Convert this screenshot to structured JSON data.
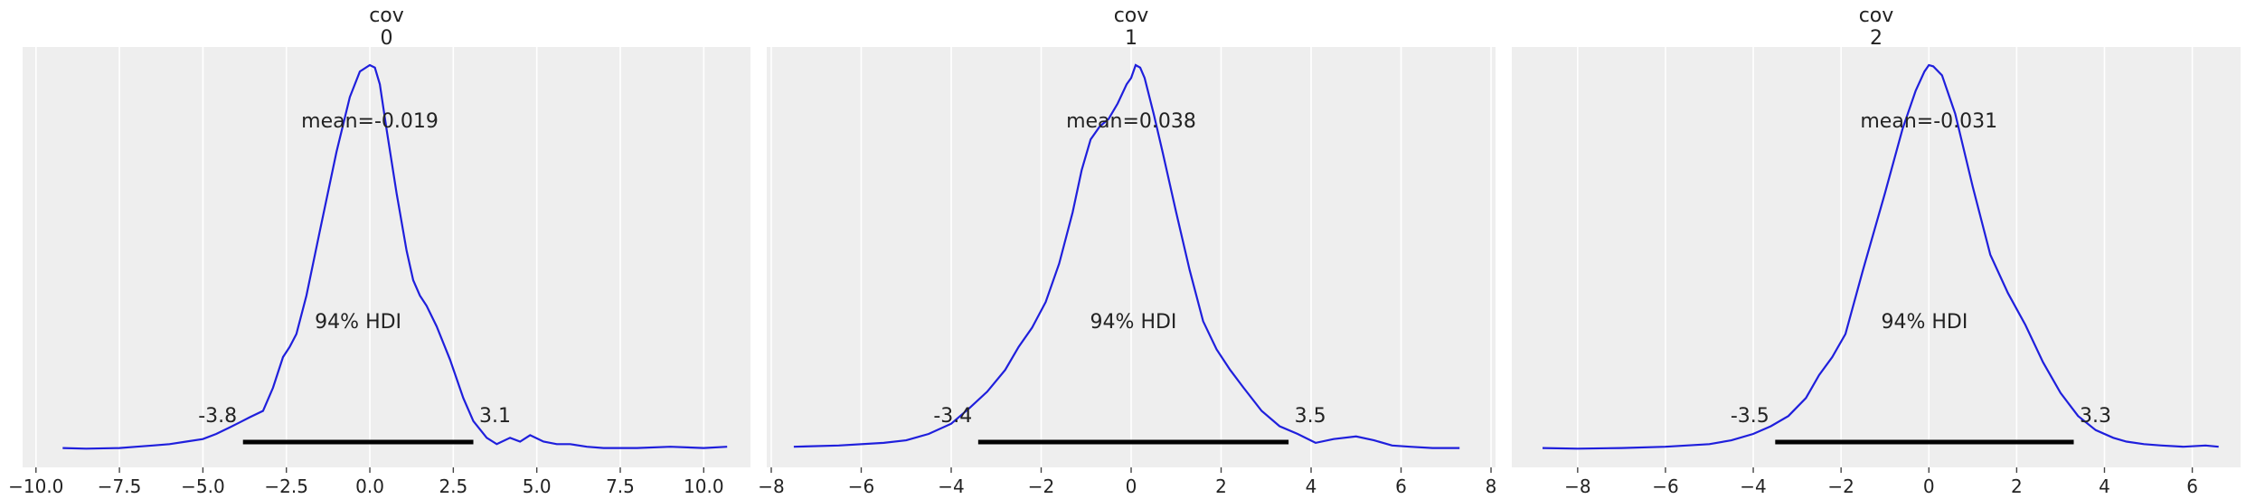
{
  "chart_data": [
    {
      "type": "line",
      "title": "cov\n0",
      "title_lines": [
        "cov",
        "0"
      ],
      "xlim": [
        -10.4,
        11.4
      ],
      "xticks": [
        -10.0,
        -7.5,
        -5.0,
        -2.5,
        0.0,
        2.5,
        5.0,
        7.5,
        10.0
      ],
      "xtick_labels": [
        "−10.0",
        "−7.5",
        "−5.0",
        "−2.5",
        "0.0",
        "2.5",
        "5.0",
        "7.5",
        "10.0"
      ],
      "mean_label": "mean=-0.019",
      "hdi_label": "94% HDI",
      "hdi": [
        -3.8,
        3.1
      ],
      "hdi_low_label": "-3.8",
      "hdi_high_label": "3.1",
      "ymax": 0.3,
      "x": [
        -9.2,
        -8.5,
        -7.5,
        -7.0,
        -6.5,
        -6.0,
        -5.5,
        -5.0,
        -4.6,
        -4.2,
        -3.9,
        -3.6,
        -3.2,
        -2.9,
        -2.6,
        -2.4,
        -2.2,
        -1.9,
        -1.5,
        -1.0,
        -0.6,
        -0.3,
        0.0,
        0.15,
        0.3,
        0.5,
        0.8,
        1.1,
        1.3,
        1.5,
        1.7,
        2.0,
        2.4,
        2.8,
        3.1,
        3.5,
        3.8,
        4.2,
        4.5,
        4.8,
        5.2,
        5.6,
        6.0,
        6.5,
        7.0,
        8.0,
        9.0,
        10.0,
        10.7
      ],
      "y": [
        0.001,
        0.0005,
        0.001,
        0.002,
        0.003,
        0.004,
        0.006,
        0.008,
        0.012,
        0.017,
        0.021,
        0.025,
        0.03,
        0.048,
        0.072,
        0.08,
        0.09,
        0.12,
        0.17,
        0.232,
        0.275,
        0.295,
        0.3,
        0.298,
        0.285,
        0.25,
        0.2,
        0.155,
        0.132,
        0.12,
        0.112,
        0.096,
        0.07,
        0.04,
        0.022,
        0.009,
        0.004,
        0.009,
        0.006,
        0.011,
        0.006,
        0.004,
        0.004,
        0.002,
        0.001,
        0.001,
        0.002,
        0.001,
        0.002
      ]
    },
    {
      "type": "line",
      "title": "cov\n1",
      "title_lines": [
        "cov",
        "1"
      ],
      "xlim": [
        -8.1,
        8.1
      ],
      "xticks": [
        -8,
        -6,
        -4,
        -2,
        0,
        2,
        4,
        6,
        8
      ],
      "xtick_labels": [
        "−8",
        "−6",
        "−4",
        "−2",
        "0",
        "2",
        "4",
        "6",
        "8"
      ],
      "mean_label": "mean=0.038",
      "hdi_label": "94% HDI",
      "hdi": [
        -3.4,
        3.5
      ],
      "hdi_low_label": "-3.4",
      "hdi_high_label": "3.5",
      "ymax": 0.3,
      "x": [
        -7.5,
        -6.5,
        -5.5,
        -5.0,
        -4.5,
        -4.0,
        -3.6,
        -3.2,
        -2.8,
        -2.5,
        -2.2,
        -1.9,
        -1.6,
        -1.3,
        -1.1,
        -0.9,
        -0.7,
        -0.5,
        -0.3,
        -0.1,
        0.0,
        0.1,
        0.2,
        0.3,
        0.5,
        0.7,
        1.0,
        1.3,
        1.6,
        1.9,
        2.2,
        2.5,
        2.9,
        3.3,
        3.7,
        4.1,
        4.5,
        5.0,
        5.4,
        5.8,
        6.2,
        6.7,
        7.3
      ],
      "y": [
        0.002,
        0.003,
        0.005,
        0.007,
        0.012,
        0.02,
        0.032,
        0.045,
        0.062,
        0.08,
        0.095,
        0.115,
        0.145,
        0.185,
        0.218,
        0.242,
        0.252,
        0.258,
        0.27,
        0.285,
        0.29,
        0.3,
        0.298,
        0.29,
        0.262,
        0.232,
        0.185,
        0.14,
        0.1,
        0.078,
        0.062,
        0.048,
        0.03,
        0.018,
        0.012,
        0.005,
        0.008,
        0.01,
        0.007,
        0.003,
        0.002,
        0.001,
        0.001
      ]
    },
    {
      "type": "line",
      "title": "cov\n2",
      "title_lines": [
        "cov",
        "2"
      ],
      "xlim": [
        -9.5,
        7.1
      ],
      "xticks": [
        -8,
        -6,
        -4,
        -2,
        0,
        2,
        4,
        6
      ],
      "xtick_labels": [
        "−8",
        "−6",
        "−4",
        "−2",
        "0",
        "2",
        "4",
        "6"
      ],
      "mean_label": "mean=-0.031",
      "hdi_label": "94% HDI",
      "hdi": [
        -3.5,
        3.3
      ],
      "hdi_low_label": "-3.5",
      "hdi_high_label": "3.3",
      "ymax": 0.3,
      "x": [
        -8.8,
        -8.0,
        -7.0,
        -6.0,
        -5.0,
        -4.5,
        -4.0,
        -3.6,
        -3.2,
        -2.8,
        -2.5,
        -2.2,
        -1.9,
        -1.5,
        -1.0,
        -0.6,
        -0.3,
        -0.1,
        0.0,
        0.1,
        0.3,
        0.6,
        1.0,
        1.4,
        1.8,
        2.2,
        2.6,
        3.0,
        3.4,
        3.8,
        4.2,
        4.5,
        4.9,
        5.3,
        5.8,
        6.3,
        6.6
      ],
      "y": [
        0.001,
        0.0005,
        0.001,
        0.002,
        0.004,
        0.007,
        0.012,
        0.018,
        0.026,
        0.04,
        0.058,
        0.072,
        0.09,
        0.14,
        0.2,
        0.25,
        0.28,
        0.295,
        0.3,
        0.299,
        0.292,
        0.262,
        0.205,
        0.152,
        0.122,
        0.097,
        0.068,
        0.044,
        0.026,
        0.015,
        0.009,
        0.006,
        0.004,
        0.003,
        0.002,
        0.003,
        0.002
      ]
    }
  ]
}
